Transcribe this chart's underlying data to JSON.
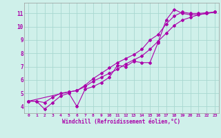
{
  "background_color": "#cff0ea",
  "grid_color": "#a8d8d0",
  "line_color": "#aa00aa",
  "xlabel": "Windchill (Refroidissement éolien,°C)",
  "ylabel_ticks": [
    4,
    5,
    6,
    7,
    8,
    9,
    10,
    11
  ],
  "xlim": [
    -0.5,
    23.5
  ],
  "ylim": [
    3.5,
    11.8
  ],
  "line1_x": [
    0,
    1,
    2,
    3,
    4,
    5,
    6,
    7,
    8,
    9,
    10,
    11,
    12,
    13,
    14,
    15,
    16,
    17,
    18,
    19,
    20,
    21,
    22,
    23
  ],
  "line1_y": [
    4.4,
    4.4,
    3.8,
    4.3,
    4.8,
    5.0,
    4.0,
    5.3,
    5.5,
    5.8,
    6.2,
    7.1,
    7.0,
    7.4,
    7.3,
    7.3,
    8.8,
    10.5,
    11.3,
    11.0,
    10.9,
    10.9,
    11.0,
    11.1
  ],
  "line2_x": [
    0,
    1,
    2,
    3,
    4,
    5,
    6,
    7,
    8,
    9,
    10,
    11,
    12,
    13,
    14,
    15,
    16,
    17,
    18,
    19,
    20,
    21,
    22,
    23
  ],
  "line2_y": [
    4.4,
    4.4,
    4.3,
    4.7,
    5.0,
    5.1,
    5.2,
    5.5,
    5.9,
    6.2,
    6.5,
    6.8,
    7.2,
    7.5,
    7.8,
    8.3,
    8.9,
    9.5,
    10.1,
    10.5,
    10.7,
    10.9,
    11.0,
    11.1
  ],
  "line3_x": [
    0,
    5,
    6,
    7,
    8,
    9,
    10,
    11,
    12,
    13,
    14,
    15,
    16,
    17,
    18,
    19,
    20,
    21,
    22,
    23
  ],
  "line3_y": [
    4.4,
    5.1,
    5.2,
    5.6,
    6.1,
    6.5,
    6.9,
    7.3,
    7.6,
    7.9,
    8.3,
    9.0,
    9.4,
    10.2,
    10.8,
    11.1,
    11.0,
    11.0,
    11.05,
    11.1
  ],
  "xtick_labels": [
    "0",
    "1",
    "2",
    "3",
    "4",
    "5",
    "6",
    "7",
    "8",
    "9",
    "10",
    "11",
    "12",
    "13",
    "14",
    "15",
    "16",
    "17",
    "18",
    "19",
    "20",
    "21",
    "22",
    "23"
  ]
}
